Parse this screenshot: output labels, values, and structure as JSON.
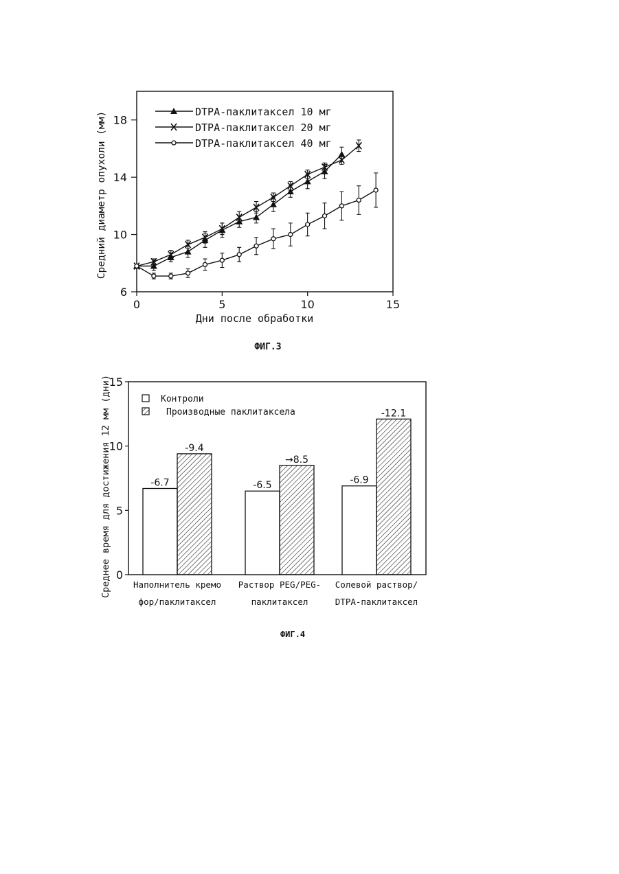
{
  "chart_data": [
    {
      "type": "line",
      "figure_label": "ФИГ.3",
      "xlabel": "Дни после обработки",
      "ylabel": "Средний диаметр опухоли (мм)",
      "xlim": [
        0,
        15
      ],
      "ylim": [
        6,
        20
      ],
      "xticks": [
        0,
        5,
        10,
        15
      ],
      "yticks": [
        6,
        10,
        14,
        18
      ],
      "grid": false,
      "legend_position": "top-left",
      "series": [
        {
          "name": "DTPA-паклитаксел 10 мг",
          "marker": "triangle",
          "x": [
            0,
            1,
            2,
            3,
            4,
            5,
            6,
            7,
            8,
            9,
            10,
            11,
            12
          ],
          "y": [
            7.8,
            7.8,
            8.4,
            8.8,
            9.6,
            10.3,
            10.9,
            11.2,
            12.1,
            13.0,
            13.7,
            14.4,
            15.6
          ],
          "err": [
            0.0,
            0.3,
            0.3,
            0.4,
            0.5,
            0.5,
            0.4,
            0.4,
            0.5,
            0.4,
            0.5,
            0.5,
            0.5
          ]
        },
        {
          "name": "DTPA-паклитаксел 20 мг",
          "marker": "cross",
          "x": [
            0,
            1,
            2,
            3,
            4,
            5,
            6,
            7,
            8,
            9,
            10,
            11,
            12,
            13
          ],
          "y": [
            7.8,
            8.1,
            8.6,
            9.3,
            9.8,
            10.4,
            11.2,
            11.9,
            12.6,
            13.4,
            14.2,
            14.7,
            15.2,
            16.2
          ],
          "err": [
            0.0,
            0.2,
            0.3,
            0.3,
            0.4,
            0.4,
            0.4,
            0.4,
            0.3,
            0.3,
            0.3,
            0.3,
            0.3,
            0.4
          ]
        },
        {
          "name": "DTPA-паклитаксел 40 мг",
          "marker": "circle",
          "x": [
            0,
            1,
            2,
            3,
            4,
            5,
            6,
            7,
            8,
            9,
            10,
            11,
            12,
            13,
            14
          ],
          "y": [
            7.8,
            7.1,
            7.1,
            7.3,
            7.9,
            8.2,
            8.6,
            9.2,
            9.7,
            10.0,
            10.7,
            11.3,
            12.0,
            12.4,
            13.1
          ],
          "err": [
            0.0,
            0.2,
            0.2,
            0.3,
            0.4,
            0.5,
            0.5,
            0.6,
            0.7,
            0.8,
            0.8,
            0.9,
            1.0,
            1.0,
            1.2
          ]
        }
      ]
    },
    {
      "type": "bar",
      "figure_label": "ФИГ.4",
      "ylabel": "Среднее время для достижения 12 мм (дни)",
      "ylim": [
        0,
        15
      ],
      "yticks": [
        0,
        5,
        10,
        15
      ],
      "grid": false,
      "legend_position": "top-left",
      "categories": [
        [
          "Наполнитель кремо",
          "фор/паклитаксел"
        ],
        [
          "Раствор PEG/PEG-",
          "паклитаксел"
        ],
        [
          "Солевой раствор/",
          "DTPA-паклитаксел"
        ]
      ],
      "series": [
        {
          "name": "Контроли",
          "fill": "white",
          "values": [
            6.7,
            6.5,
            6.9
          ],
          "labels": [
            "-6.7",
            "-6.5",
            "-6.9"
          ]
        },
        {
          "name": "Производные паклитаксела",
          "fill": "hatch",
          "values": [
            9.4,
            8.5,
            12.1
          ],
          "labels": [
            "-9.4",
            "→8.5",
            "-12.1"
          ]
        }
      ]
    }
  ]
}
